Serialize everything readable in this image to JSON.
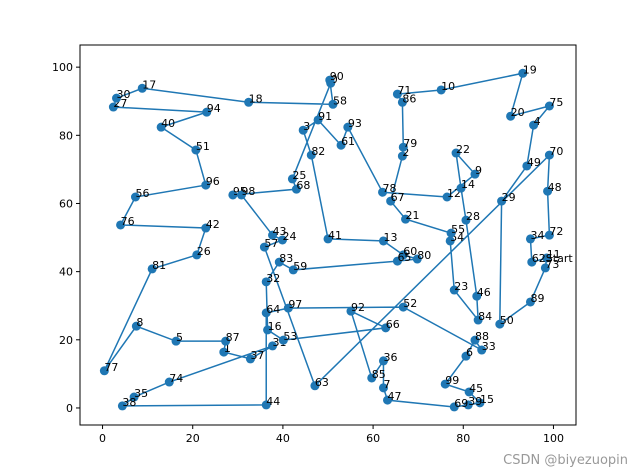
{
  "chart_data": {
    "type": "scatter",
    "color": "#1f77b4",
    "xlim": [
      -5,
      105
    ],
    "ylim": [
      -5,
      106.5
    ],
    "xticks": [
      0,
      20,
      40,
      60,
      80,
      100
    ],
    "yticks": [
      0,
      20,
      40,
      60,
      80,
      100
    ],
    "labels": [
      0,
      1,
      2,
      3,
      4,
      5,
      6,
      7,
      8,
      9,
      10,
      11,
      12,
      13,
      14,
      15,
      16,
      17,
      18,
      19,
      20,
      21,
      22,
      23,
      24,
      25,
      26,
      27,
      28,
      29,
      30,
      31,
      32,
      33,
      34,
      35,
      36,
      37,
      38,
      39,
      40,
      41,
      42,
      43,
      44,
      45,
      46,
      47,
      48,
      49,
      50,
      51,
      52,
      53,
      54,
      55,
      56,
      57,
      58,
      59,
      60,
      61,
      62,
      63,
      64,
      65,
      66,
      67,
      68,
      69,
      70,
      71,
      72,
      73,
      74,
      75,
      76,
      77,
      78,
      79,
      80,
      81,
      82,
      83,
      84,
      85,
      86,
      87,
      88,
      89,
      90,
      91,
      92,
      93,
      94,
      95,
      96,
      97,
      98,
      99
    ],
    "x": [
      50.6,
      26.9,
      66.5,
      44.5,
      95.6,
      16.3,
      80.6,
      62.3,
      7.5,
      82.6,
      75.1,
      98.5,
      76.4,
      62.3,
      79.5,
      83.7,
      36.6,
      8.8,
      32.4,
      93.2,
      90.5,
      67.2,
      78.4,
      78.0,
      39.9,
      42.1,
      20.9,
      2.4,
      80.6,
      88.5,
      3.1,
      37.7,
      36.3,
      84.1,
      94.9,
      7.0,
      62.3,
      32.8,
      4.4,
      81.1,
      13.0,
      50.0,
      22.9,
      37.7,
      36.3,
      81.3,
      83.0,
      63.2,
      98.7,
      94.1,
      88.1,
      20.7,
      66.7,
      40.1,
      77.1,
      77.3,
      7.3,
      35.9,
      51.1,
      42.3,
      66.7,
      52.9,
      95.2,
      47.1,
      36.3,
      65.4,
      62.8,
      63.9,
      43.0,
      78.0,
      99.1,
      65.4,
      99.1,
      98.2,
      14.8,
      99.1,
      4.0,
      0.4,
      62.1,
      66.7,
      69.8,
      11.0,
      46.3,
      39.2,
      83.3,
      59.7,
      66.5,
      27.3,
      82.6,
      94.9,
      50.4,
      47.8,
      55.1,
      54.4,
      23.1,
      28.9,
      22.9,
      41.2,
      30.8,
      76.0
    ],
    "y": [
      95.3,
      16.4,
      73.9,
      81.5,
      83.0,
      19.6,
      15.2,
      5.9,
      24.0,
      68.6,
      93.3,
      44.0,
      61.9,
      49.0,
      64.5,
      1.5,
      22.9,
      93.8,
      89.7,
      98.2,
      85.6,
      55.4,
      74.8,
      34.6,
      49.3,
      67.2,
      44.9,
      88.3,
      55.1,
      60.7,
      90.9,
      18.2,
      37.0,
      17.0,
      49.6,
      3.2,
      13.8,
      14.4,
      0.6,
      0.9,
      82.4,
      49.6,
      52.8,
      50.7,
      0.9,
      4.7,
      32.8,
      2.3,
      63.6,
      71.0,
      24.6,
      75.7,
      29.6,
      19.9,
      49.0,
      51.3,
      61.9,
      47.2,
      89.1,
      40.5,
      44.9,
      77.1,
      42.8,
      6.5,
      27.9,
      43.1,
      23.5,
      60.7,
      64.2,
      0.3,
      74.2,
      92.1,
      50.7,
      41.1,
      7.6,
      88.6,
      53.7,
      10.9,
      63.3,
      76.5,
      43.7,
      40.8,
      74.2,
      42.8,
      25.8,
      8.8,
      89.7,
      19.6,
      19.9,
      31.1,
      96.2,
      84.5,
      28.4,
      82.4,
      86.8,
      62.5,
      65.4,
      29.3,
      62.5,
      7.0
    ],
    "route": [
      62,
      11,
      73,
      89,
      50,
      29,
      49,
      4,
      75,
      20,
      19,
      10,
      71,
      86,
      79,
      2,
      67,
      21,
      55,
      54,
      23,
      84,
      46,
      28,
      14,
      22,
      9,
      12,
      78,
      93,
      61,
      91,
      3,
      82,
      41,
      13,
      60,
      80,
      65,
      59,
      83,
      32,
      16,
      53,
      66,
      92,
      85,
      36,
      7,
      47,
      69,
      39,
      15,
      45,
      99,
      6,
      88,
      33,
      52,
      97,
      64,
      44,
      38,
      35,
      74,
      31,
      37,
      1,
      87,
      5,
      8,
      77,
      81,
      26,
      42,
      76,
      56,
      96,
      51,
      40,
      94,
      27,
      30,
      17,
      18,
      58,
      90,
      0,
      25,
      68,
      95,
      98,
      43,
      24,
      57,
      63,
      70,
      48,
      72,
      34,
      62
    ],
    "annotation": {
      "text": "Start",
      "point": 62
    },
    "watermark": "CSDN @biyezuopin"
  }
}
